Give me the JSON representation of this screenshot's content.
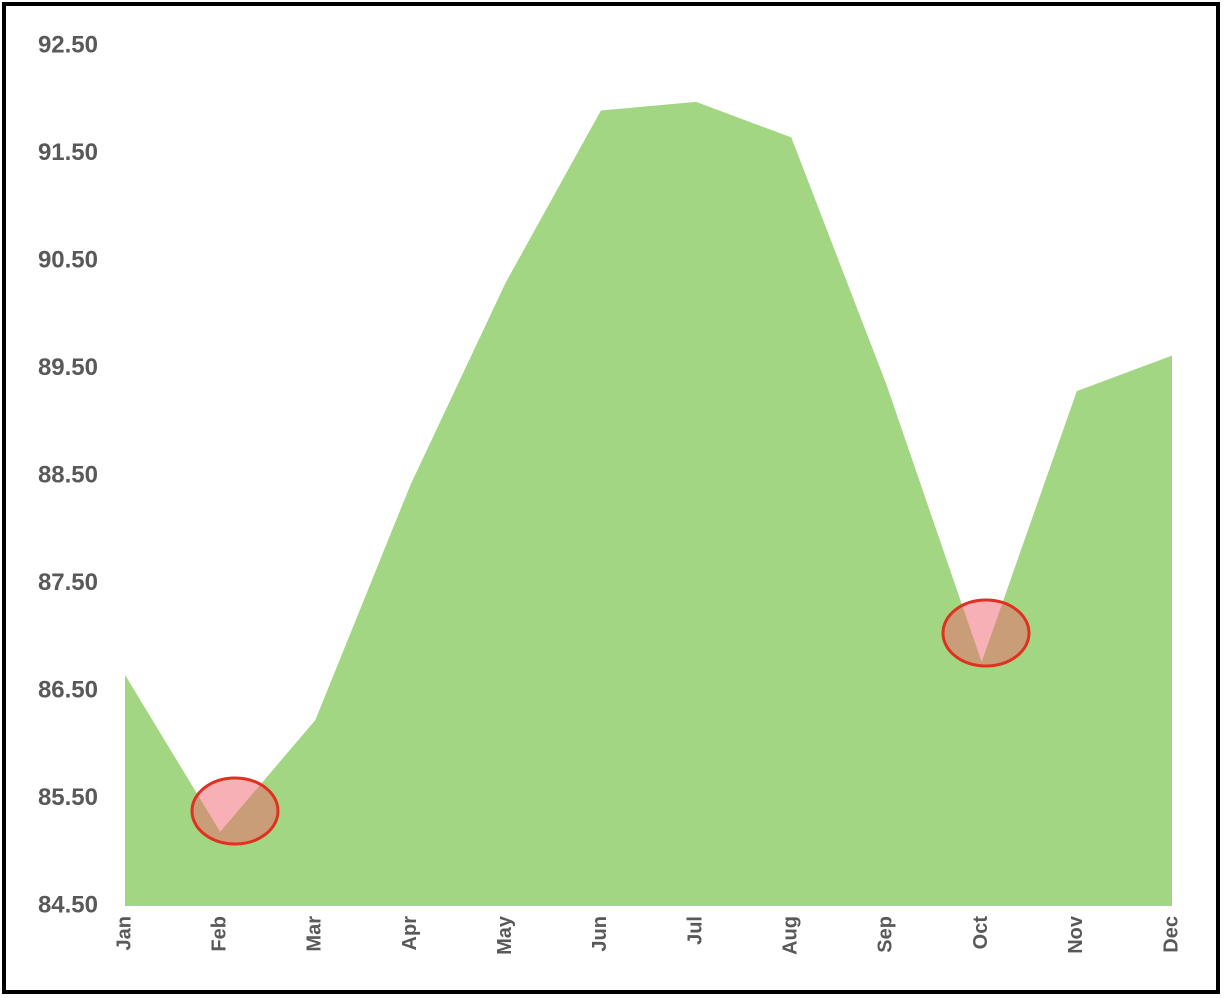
{
  "chart_data": {
    "type": "area",
    "categories": [
      "Jan",
      "Feb",
      "Mar",
      "Apr",
      "May",
      "Jun",
      "Jul",
      "Aug",
      "Sep",
      "Oct",
      "Nov",
      "Dec"
    ],
    "values": [
      86.65,
      85.19,
      86.23,
      88.42,
      90.3,
      91.9,
      91.98,
      91.65,
      89.35,
      86.77,
      89.29,
      89.62
    ],
    "color": "#a2d683",
    "ylim": [
      84.5,
      92.5
    ],
    "yticks": [
      {
        "value": 84.5,
        "label": "84.50"
      },
      {
        "value": 85.5,
        "label": "85.50"
      },
      {
        "value": 86.5,
        "label": "86.50"
      },
      {
        "value": 87.5,
        "label": "87.50"
      },
      {
        "value": 88.5,
        "label": "88.50"
      },
      {
        "value": 89.5,
        "label": "89.50"
      },
      {
        "value": 90.5,
        "label": "90.50"
      },
      {
        "value": 91.5,
        "label": "91.50"
      },
      {
        "value": 92.5,
        "label": "92.50"
      }
    ],
    "grid": false
  }
}
